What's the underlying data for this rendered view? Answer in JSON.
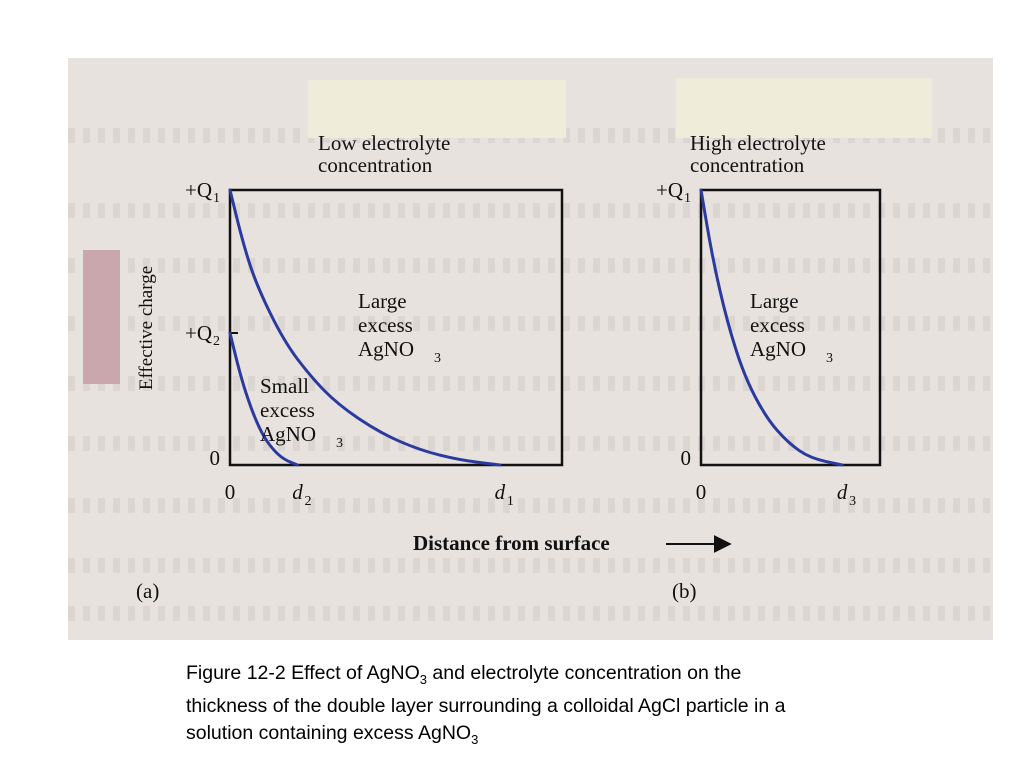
{
  "chart_data": [
    {
      "type": "line",
      "panel_label": "(a)",
      "title": "Low electrolyte concentration",
      "title_lines": [
        "Low electrolyte",
        "concentration"
      ],
      "ylabel": "Effective charge",
      "y_ticks": [
        {
          "value": 1.0,
          "main": "+Q",
          "sub": "1"
        },
        {
          "value": 0.48,
          "main": "+Q",
          "sub": "2"
        },
        {
          "value": 0.0,
          "main": "0",
          "sub": ""
        }
      ],
      "x_ticks": [
        {
          "value": 0.0,
          "main": "0",
          "sub": ""
        },
        {
          "value": 0.25,
          "main": "d",
          "sub": "2"
        },
        {
          "value": 1.0,
          "main": "d",
          "sub": "1"
        }
      ],
      "xlim": [
        0,
        1.23
      ],
      "ylim": [
        0,
        1.0
      ],
      "series": [
        {
          "annotation": [
            "Large",
            "excess",
            "AgNO",
            "3"
          ],
          "color": "#2b3a9e",
          "points": [
            [
              0,
              1.0
            ],
            [
              0.05,
              0.8
            ],
            [
              0.1,
              0.65
            ],
            [
              0.2,
              0.45
            ],
            [
              0.3,
              0.32
            ],
            [
              0.4,
              0.22
            ],
            [
              0.55,
              0.12
            ],
            [
              0.7,
              0.055
            ],
            [
              0.85,
              0.018
            ],
            [
              1.0,
              0.0
            ]
          ]
        },
        {
          "annotation": [
            "Small",
            "excess",
            "AgNO",
            "3"
          ],
          "color": "#2b3a9e",
          "points": [
            [
              0,
              0.48
            ],
            [
              0.04,
              0.32
            ],
            [
              0.08,
              0.2
            ],
            [
              0.12,
              0.11
            ],
            [
              0.16,
              0.055
            ],
            [
              0.2,
              0.02
            ],
            [
              0.25,
              0.0
            ]
          ]
        }
      ]
    },
    {
      "type": "line",
      "panel_label": "(b)",
      "title": "High electrolyte concentration",
      "title_lines": [
        "High electrolyte",
        "concentration"
      ],
      "y_ticks": [
        {
          "value": 1.0,
          "main": "+Q",
          "sub": "1"
        },
        {
          "value": 0.0,
          "main": "0",
          "sub": ""
        }
      ],
      "x_ticks": [
        {
          "value": 0.0,
          "main": "0",
          "sub": ""
        },
        {
          "value": 0.97,
          "main": "d",
          "sub": "3"
        }
      ],
      "xlim": [
        0,
        1.23
      ],
      "ylim": [
        0,
        1.0
      ],
      "series": [
        {
          "annotation": [
            "Large",
            "excess",
            "AgNO",
            "3"
          ],
          "color": "#2b3a9e",
          "points": [
            [
              0,
              1.0
            ],
            [
              0.08,
              0.75
            ],
            [
              0.18,
              0.52
            ],
            [
              0.3,
              0.32
            ],
            [
              0.45,
              0.17
            ],
            [
              0.6,
              0.08
            ],
            [
              0.75,
              0.025
            ],
            [
              0.97,
              0.0
            ]
          ]
        }
      ]
    }
  ],
  "shared_xlabel": "Distance from surface",
  "caption": {
    "line1_a": "Figure 12-2 Effect of AgNO",
    "line1_sub": "3",
    "line1_b": " and electrolyte concentration on the",
    "line2": "thickness of the double layer surrounding a colloidal AgCl particle in a",
    "line3_a": "solution containing excess AgNO",
    "line3_sub": "3"
  }
}
